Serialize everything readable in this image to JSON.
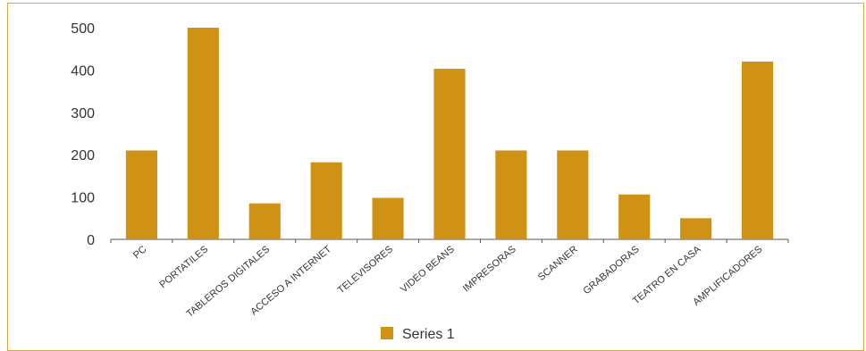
{
  "chart_data": {
    "type": "bar",
    "categories": [
      "PC",
      "PORTATILES",
      "TABLEROS DIGITALES",
      "ACCESO A INTERNET",
      "TELEVISORES",
      "VIDEO BEANS",
      "IMPRESORAS",
      "SCANNER",
      "GRABADORAS",
      "TEATRO EN CASA",
      "AMPLIFICADORES"
    ],
    "series": [
      {
        "name": "Series 1",
        "values": [
          210,
          500,
          85,
          182,
          98,
          403,
          210,
          210,
          106,
          50,
          420
        ],
        "color": "#d09215"
      }
    ],
    "ylim": [
      0,
      500
    ],
    "yticks": [
      0,
      100,
      200,
      300,
      400,
      500
    ],
    "ytick_labels": [
      "0",
      "100",
      "200",
      "300",
      "400",
      "500"
    ],
    "grid": false,
    "legend_position": "bottom"
  }
}
